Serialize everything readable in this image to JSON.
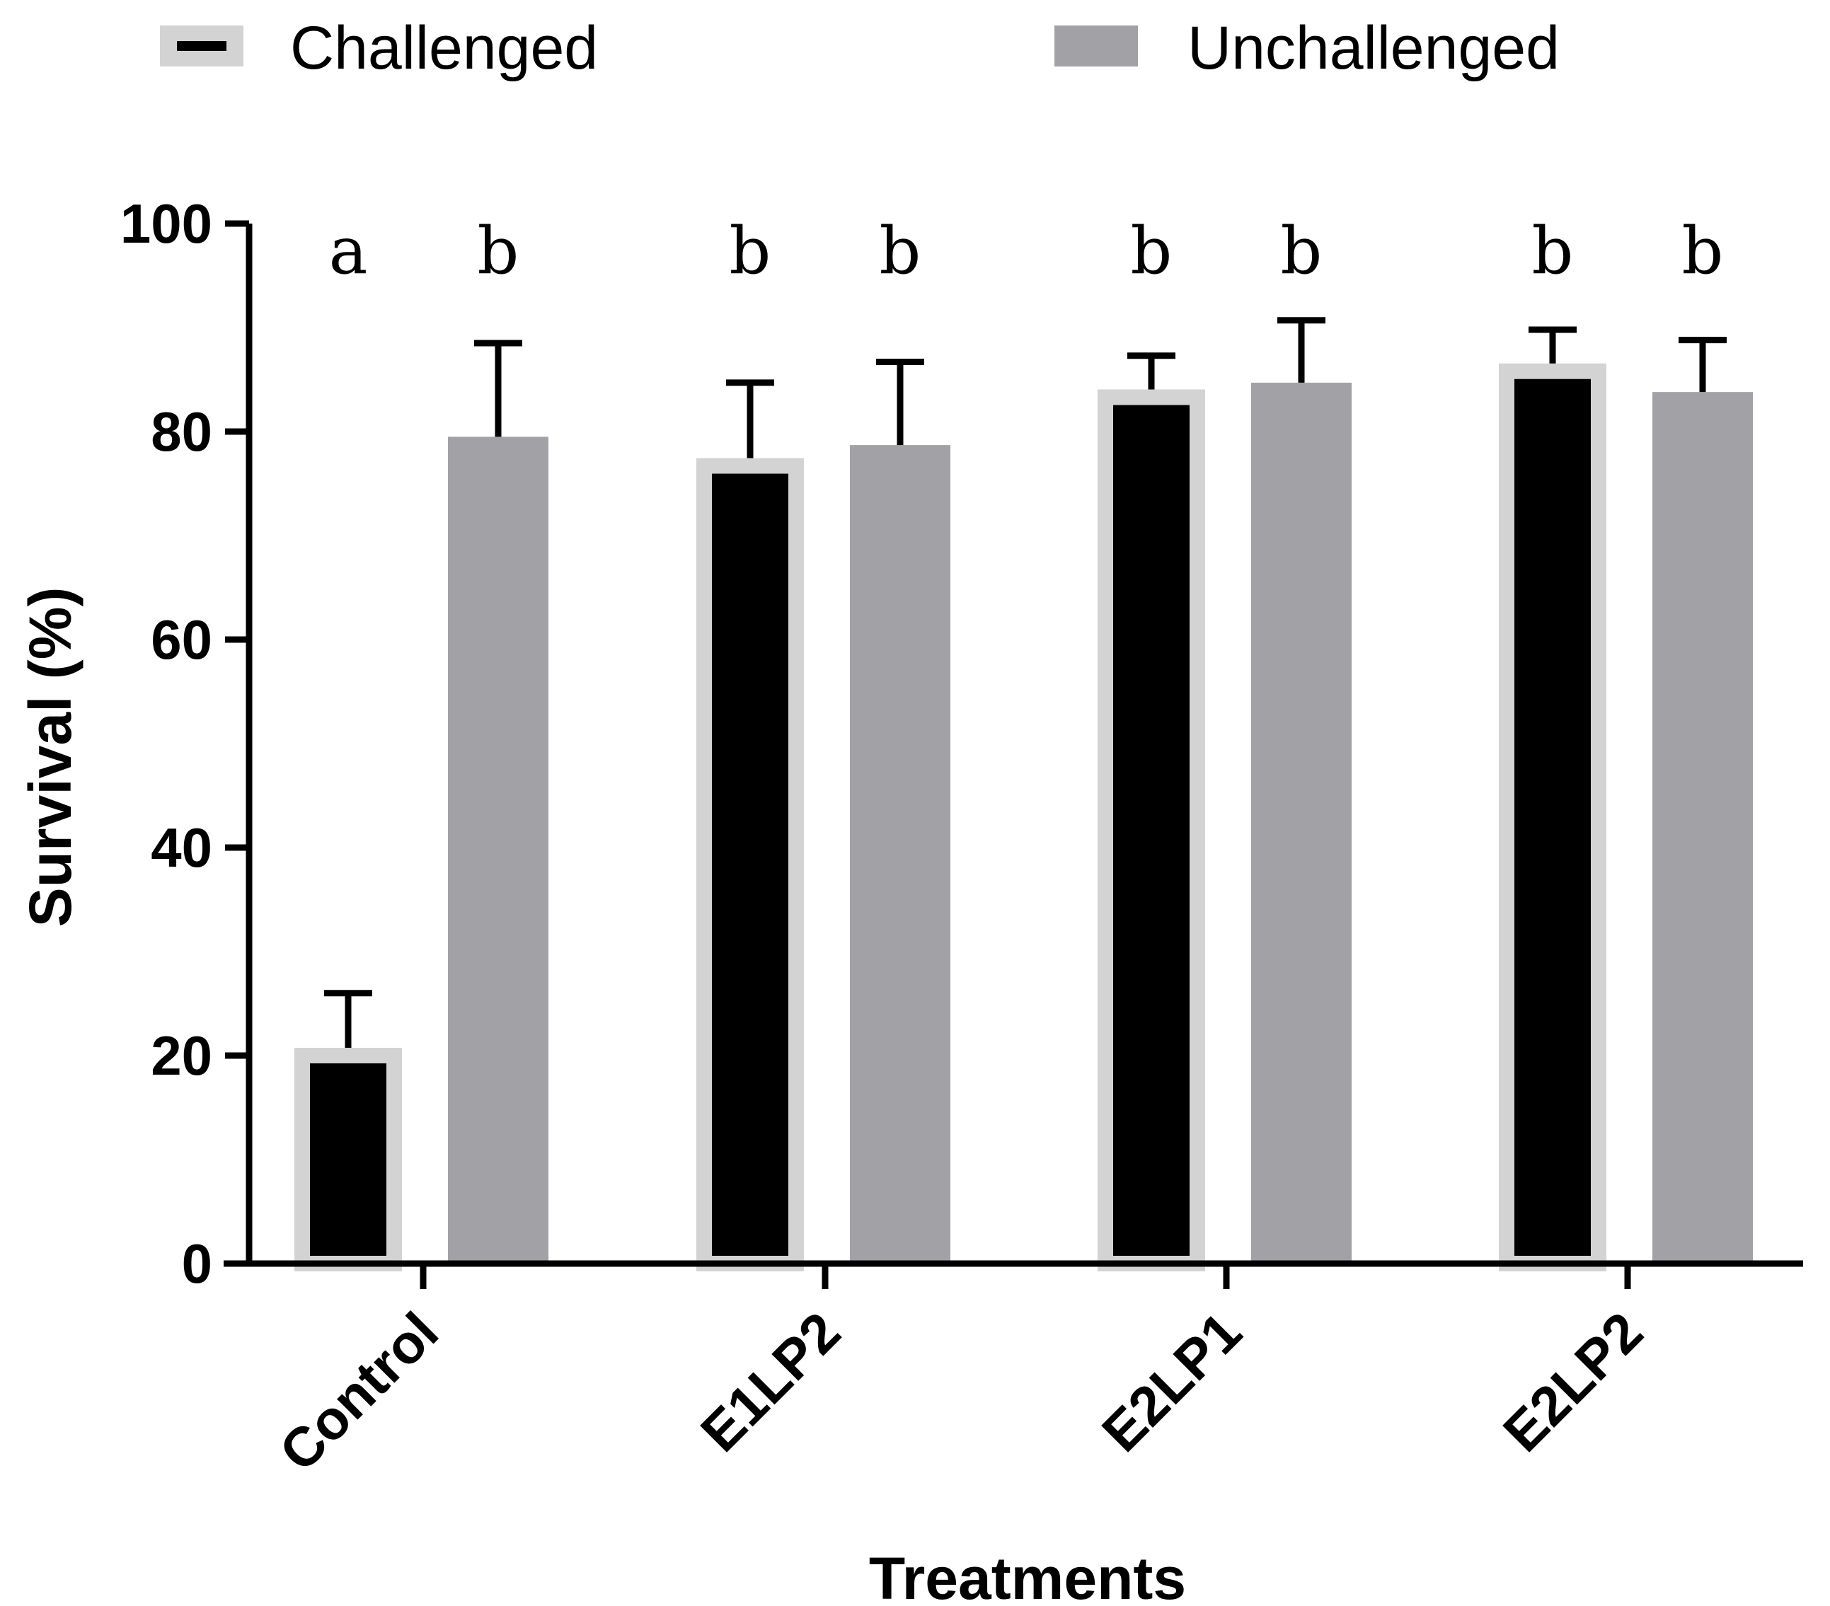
{
  "colors": {
    "challenged_fill": "#000000",
    "challenged_border": "#d3d3d3",
    "unchallenged_fill": "#a2a2a6",
    "axis": "#000000",
    "background": "#ffffff"
  },
  "chart_data": {
    "type": "bar",
    "title": "",
    "xlabel": "Treatments",
    "ylabel": "Survival (%)",
    "ylim": [
      0,
      100
    ],
    "yticks": [
      "0",
      "20",
      "40",
      "60",
      "80",
      "100"
    ],
    "categories": [
      "Control",
      "E1LP2",
      "E2LP1",
      "E2LP2"
    ],
    "legend_position": "top",
    "series": [
      {
        "name": "Challenged",
        "values": [
          20,
          76.7,
          83.3,
          85.8
        ],
        "errors": [
          6,
          8,
          4,
          4
        ],
        "letters": [
          "a",
          "b",
          "b",
          "b"
        ]
      },
      {
        "name": "Unchallenged",
        "values": [
          79.5,
          78.7,
          84.7,
          83.8
        ],
        "errors": [
          9,
          8,
          6,
          5
        ],
        "letters": [
          "b",
          "b",
          "b",
          "b"
        ]
      }
    ]
  }
}
